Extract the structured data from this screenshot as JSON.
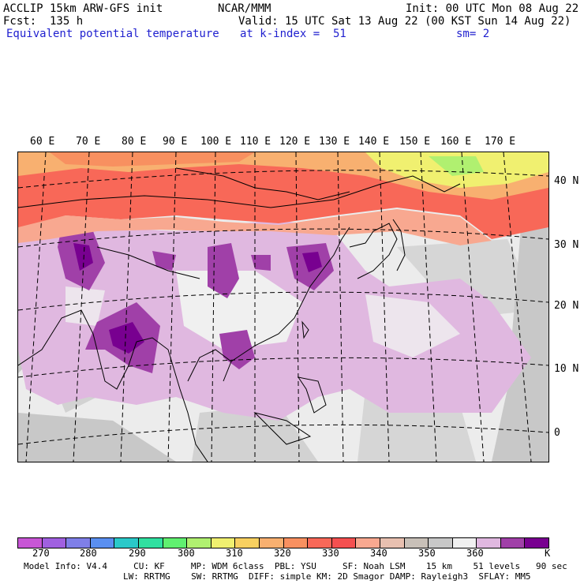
{
  "header": {
    "model": "ACCLIP 15km ARW-GFS init",
    "center": "NCAR/MMM",
    "init": "Init: 00 UTC Mon 08 Aug 22",
    "fcst": "Fcst:  135 h",
    "valid": "Valid: 15 UTC Sat 13 Aug 22 (00 KST Sun 14 Aug 22)",
    "field": "Equivalent potential temperature",
    "level": "at k-index =  51",
    "smooth": "sm= 2"
  },
  "map": {
    "lon_labels": [
      "60 E",
      "70 E",
      "80 E",
      "90 E",
      "100 E",
      "110 E",
      "120 E",
      "130 E",
      "140 E",
      "150 E",
      "160 E",
      "170 E"
    ],
    "lat_labels": [
      "40 N",
      "30 N",
      "20 N",
      "10 N",
      "0"
    ]
  },
  "colorbar": {
    "colors": [
      "#c856d6",
      "#a060e0",
      "#7f7fe8",
      "#5a8ff0",
      "#2ac9c9",
      "#30e0a0",
      "#60f070",
      "#b0f070",
      "#f0f070",
      "#f8d060",
      "#f8b070",
      "#f89060",
      "#f86858",
      "#f45050",
      "#f8a890",
      "#e8c0b0",
      "#c8c0b8",
      "#c8c8c8",
      "#f0f0f0",
      "#e0b8e0",
      "#a040a8",
      "#780090"
    ],
    "ticks": [
      "270",
      "280",
      "290",
      "300",
      "310",
      "320",
      "330",
      "340",
      "350",
      "360"
    ],
    "unit": "K"
  },
  "footer": {
    "line1": "Model Info: V4.4     CU: KF     MP: WDM 6class  PBL: YSU     SF: Noah LSM    15 km    51 levels   90 sec",
    "line2": "LW: RRTMG    SW: RRTMG  DIFF: simple KM: 2D Smagor DAMP: Rayleigh3  SFLAY: MM5"
  }
}
